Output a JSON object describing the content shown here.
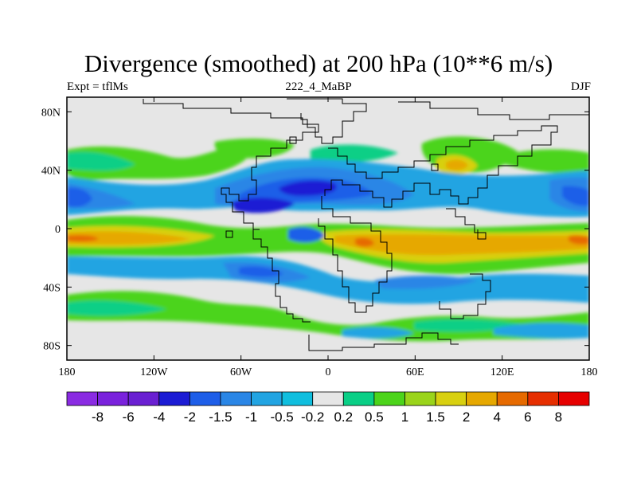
{
  "chart_data": {
    "type": "heatmap",
    "title": "Divergence (smoothed) at 200 hPa (10**6 m/s)",
    "subtitle_left": "Expt = tflMs",
    "subtitle_center": "222_4_MaBP",
    "subtitle_right": "DJF",
    "x_ticks": [
      "180",
      "120W",
      "60W",
      "0",
      "60E",
      "120E",
      "180"
    ],
    "y_ticks": [
      "80N",
      "40N",
      "0",
      "40S",
      "80S"
    ],
    "x_tick_values": [
      -180,
      -120,
      -60,
      0,
      60,
      120,
      180
    ],
    "y_tick_values": [
      80,
      40,
      0,
      -40,
      -80
    ],
    "xlim": [
      -180,
      180
    ],
    "ylim": [
      -90,
      90
    ],
    "colorbar": {
      "labels": [
        "-8",
        "-6",
        "-4",
        "-2",
        "-1.5",
        "-1",
        "-0.5",
        "-0.2",
        "0.2",
        "0.5",
        "1",
        "1.5",
        "2",
        "4",
        "6",
        "8"
      ],
      "colors": [
        "#8a2be2",
        "#7a22dc",
        "#6a20d2",
        "#1c1cd4",
        "#1e5ee8",
        "#2a86e6",
        "#22a4e2",
        "#10bede",
        "#e6e6e6",
        "#0acf86",
        "#4cd41a",
        "#9ad41a",
        "#d8d010",
        "#e6a800",
        "#e66a00",
        "#e62e00",
        "#e60000"
      ]
    },
    "features": [
      {
        "name": "equatorial-convergence-band",
        "value_range": [
          -2,
          -1
        ],
        "lat": [
          -5,
          30
        ],
        "lon": [
          -180,
          180
        ]
      },
      {
        "name": "equatorial-divergence-band",
        "value_range": [
          2,
          4
        ],
        "lat": [
          -20,
          0
        ],
        "lon": [
          -180,
          180
        ]
      },
      {
        "name": "midlatitude-positive-band",
        "value_range": [
          0.5,
          1.5
        ],
        "lat": [
          35,
          60
        ],
        "lon": [
          -180,
          180
        ]
      },
      {
        "name": "southern-positive-band",
        "value_range": [
          0.5,
          1
        ],
        "lat": [
          -65,
          -40
        ],
        "lon": [
          -180,
          180
        ]
      }
    ]
  }
}
